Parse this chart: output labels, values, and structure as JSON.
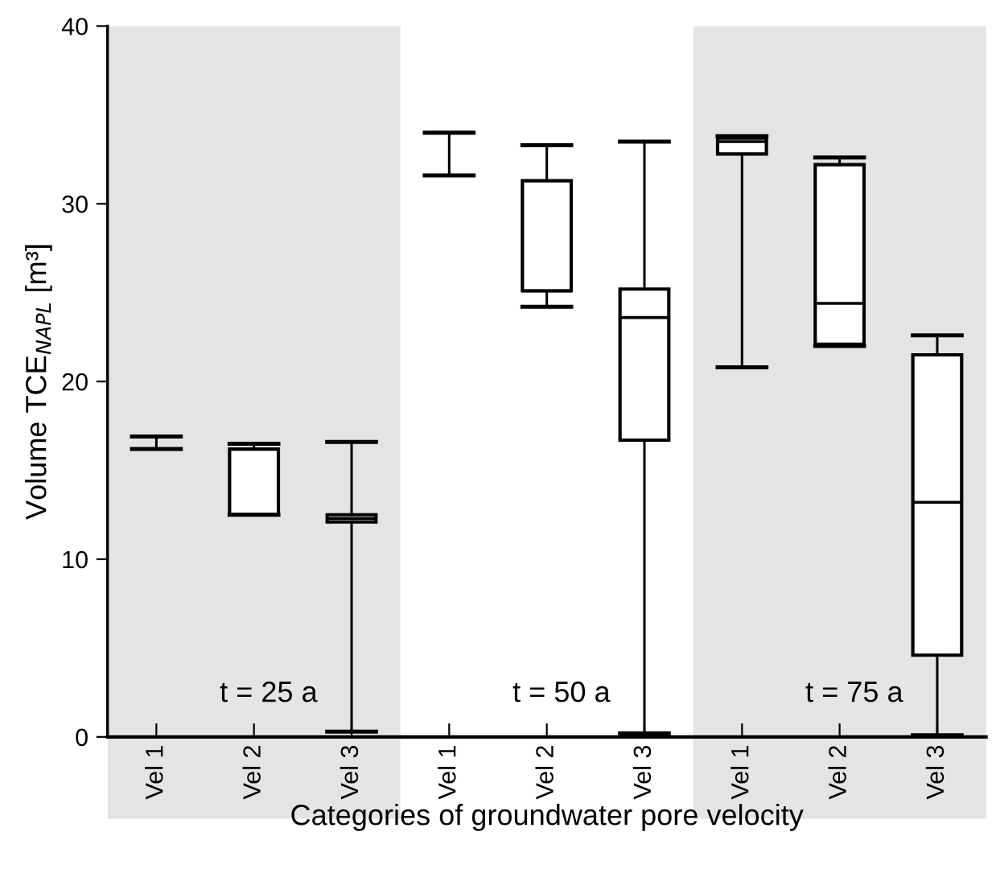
{
  "chart_data": {
    "type": "box",
    "xlabel": "Categories of groundwater pore velocity",
    "ylabel": "Volume TCE$_{NAPL}$ [m³]",
    "categories": [
      "Vel 1",
      "Vel 2",
      "Vel 3",
      "Vel 1",
      "Vel 2",
      "Vel 3",
      "Vel 1",
      "Vel 2",
      "Vel 3"
    ],
    "boxes": [
      {
        "low": 16.2,
        "q1": 16.9,
        "median": 16.9,
        "q3": 16.9,
        "high": 16.9
      },
      {
        "low": 12.5,
        "q1": 12.5,
        "median": 12.5,
        "q3": 16.2,
        "high": 16.5
      },
      {
        "low": 0.3,
        "q1": 12.1,
        "median": 12.3,
        "q3": 12.5,
        "high": 16.6
      },
      {
        "low": 31.6,
        "q1": 34.0,
        "median": 34.0,
        "q3": 34.0,
        "high": 34.0
      },
      {
        "low": 24.2,
        "q1": 25.1,
        "median": 25.1,
        "q3": 31.3,
        "high": 33.3
      },
      {
        "low": 0.2,
        "q1": 16.7,
        "median": 23.6,
        "q3": 25.2,
        "high": 33.5
      },
      {
        "low": 20.8,
        "q1": 32.8,
        "median": 33.5,
        "q3": 33.7,
        "high": 33.8
      },
      {
        "low": 22.0,
        "q1": 22.1,
        "median": 24.4,
        "q3": 32.2,
        "high": 32.6
      },
      {
        "low": 0.1,
        "q1": 4.6,
        "median": 13.2,
        "q3": 21.5,
        "high": 22.6
      }
    ],
    "ylim": [
      0,
      40
    ],
    "yticks": [
      0,
      10,
      20,
      30,
      40
    ],
    "annotations": [
      "t = 25 a",
      "t = 50 a",
      "t = 75 a"
    ],
    "grid": false,
    "legend": false
  }
}
